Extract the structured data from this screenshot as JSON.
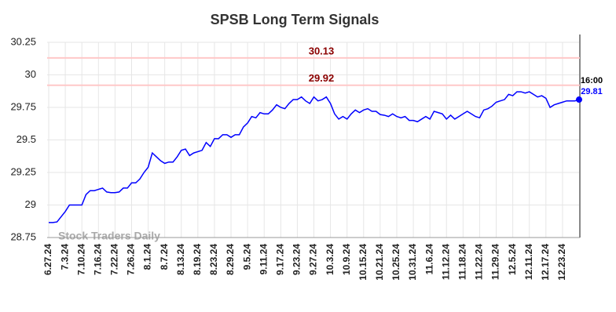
{
  "chart_data": {
    "type": "line",
    "title": "SPSB Long Term Signals",
    "watermark": "Stock Traders Daily",
    "last_time": "16:00",
    "categories": [
      "6.27.24",
      null,
      null,
      null,
      "7.3.24",
      null,
      null,
      null,
      "7.10.24",
      null,
      null,
      null,
      "7.16.24",
      null,
      null,
      null,
      "7.22.24",
      null,
      null,
      null,
      "7.26.24",
      null,
      null,
      null,
      "8.1.24",
      null,
      null,
      null,
      "8.7.24",
      null,
      null,
      null,
      "8.13.24",
      null,
      null,
      null,
      "8.19.24",
      null,
      null,
      null,
      "8.23.24",
      null,
      null,
      null,
      "8.29.24",
      null,
      null,
      null,
      "9.5.24",
      null,
      null,
      null,
      "9.11.24",
      null,
      null,
      null,
      "9.17.24",
      null,
      null,
      null,
      "9.23.24",
      null,
      null,
      null,
      "9.27.24",
      null,
      null,
      null,
      "10.3.24",
      null,
      null,
      null,
      "10.9.24",
      null,
      null,
      null,
      "10.15.24",
      null,
      null,
      null,
      "10.21.24",
      null,
      null,
      null,
      "10.25.24",
      null,
      null,
      null,
      "10.31.24",
      null,
      null,
      null,
      "11.6.24",
      null,
      null,
      null,
      "11.12.24",
      null,
      null,
      null,
      "11.18.24",
      null,
      null,
      null,
      "11.22.24",
      null,
      null,
      null,
      "11.29.24",
      null,
      null,
      null,
      "12.5.24",
      null,
      null,
      null,
      "12.11.24",
      null,
      null,
      null,
      "12.17.24",
      null,
      null,
      null,
      "12.23.24",
      null,
      null,
      null,
      null
    ],
    "values": [
      28.865,
      28.865,
      28.87,
      28.91,
      28.95,
      29.0,
      29.0,
      29.0,
      29.0,
      29.08,
      29.11,
      29.11,
      29.12,
      29.13,
      29.1,
      29.095,
      29.095,
      29.1,
      29.13,
      29.13,
      29.17,
      29.17,
      29.2,
      29.25,
      29.29,
      29.4,
      29.37,
      29.34,
      29.32,
      29.33,
      29.33,
      29.37,
      29.42,
      29.43,
      29.38,
      29.4,
      29.41,
      29.42,
      29.48,
      29.45,
      29.51,
      29.51,
      29.54,
      29.54,
      29.52,
      29.54,
      29.54,
      29.6,
      29.63,
      29.68,
      29.67,
      29.71,
      29.7,
      29.7,
      29.73,
      29.77,
      29.75,
      29.74,
      29.78,
      29.81,
      29.81,
      29.83,
      29.8,
      29.78,
      29.83,
      29.8,
      29.81,
      29.83,
      29.78,
      29.7,
      29.66,
      29.68,
      29.66,
      29.7,
      29.73,
      29.71,
      29.73,
      29.74,
      29.72,
      29.72,
      29.695,
      29.69,
      29.68,
      29.7,
      29.68,
      29.67,
      29.68,
      29.65,
      29.65,
      29.64,
      29.66,
      29.68,
      29.66,
      29.72,
      29.71,
      29.7,
      29.66,
      29.69,
      29.66,
      29.68,
      29.7,
      29.72,
      29.7,
      29.68,
      29.67,
      29.73,
      29.74,
      29.76,
      29.79,
      29.8,
      29.81,
      29.85,
      29.84,
      29.87,
      29.87,
      29.86,
      29.87,
      29.85,
      29.83,
      29.84,
      29.82,
      29.75,
      29.77,
      29.78,
      29.79,
      29.8,
      29.8,
      29.8,
      29.81
    ],
    "color": "#0000ff",
    "hlines": [
      30.13,
      29.92
    ],
    "hline_color": "#ffc8c8",
    "hline_label_color": "#8b0000",
    "ylim": [
      28.75,
      30.25
    ],
    "yticks": [
      28.75,
      29,
      29.25,
      29.5,
      29.75,
      30,
      30.25
    ],
    "grid": true
  }
}
